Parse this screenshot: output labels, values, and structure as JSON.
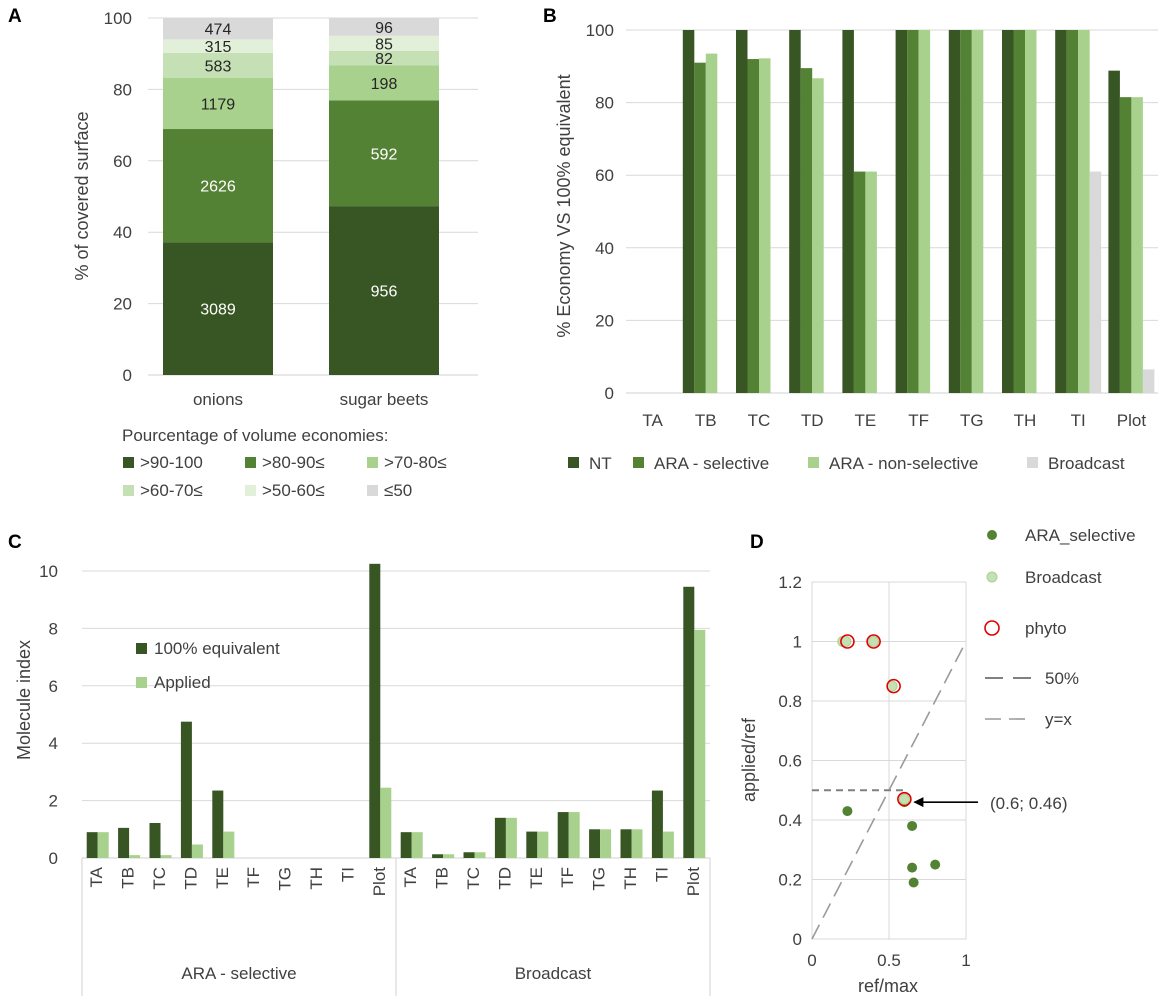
{
  "colors": {
    "dark": "#375623",
    "mid": "#548235",
    "light": "#a9d18e",
    "lighter": "#c5e0b4",
    "lightest": "#e2f0d9",
    "grey": "#d9d9d9",
    "grid": "#d9d9d9",
    "red": "#e00000",
    "dash": "#808080"
  },
  "chart_data": [
    {
      "panel": "A",
      "type": "bar",
      "stacked": true,
      "title": "",
      "ylabel": "% of covered surface",
      "ylim": [
        0,
        100
      ],
      "yticks": [
        0,
        20,
        40,
        60,
        80,
        100
      ],
      "categories": [
        "onions",
        "sugar beets"
      ],
      "legend_title": "Pourcentage of volume economies:",
      "series": [
        {
          "name": ">90-100",
          "values": [
            37.2,
            47.3
          ],
          "labels": [
            "3089",
            "956"
          ],
          "color": "dark"
        },
        {
          "name": ">80-90≤",
          "values": [
            31.7,
            29.6
          ],
          "labels": [
            "2626",
            "592"
          ],
          "color": "mid"
        },
        {
          "name": ">70-80≤",
          "values": [
            14.3,
            9.8
          ],
          "labels": [
            "1179",
            "198"
          ],
          "color": "light"
        },
        {
          "name": ">60-70≤",
          "values": [
            7.0,
            4.1
          ],
          "labels": [
            "583",
            "82"
          ],
          "color": "lighter"
        },
        {
          "name": ">50-60≤",
          "values": [
            3.8,
            4.2
          ],
          "labels": [
            "315",
            "85"
          ],
          "color": "lightest"
        },
        {
          "name": "≤50",
          "values": [
            6.0,
            5.0
          ],
          "labels": [
            "474",
            "96"
          ],
          "color": "grey"
        }
      ]
    },
    {
      "panel": "B",
      "type": "bar",
      "ylabel": "% Economy VS 100% equivalent",
      "ylim": [
        0,
        100
      ],
      "yticks": [
        0,
        20,
        40,
        60,
        80,
        100
      ],
      "categories": [
        "TA",
        "TB",
        "TC",
        "TD",
        "TE",
        "TF",
        "TG",
        "TH",
        "TI",
        "Plot"
      ],
      "series": [
        {
          "name": "NT",
          "values": [
            0,
            100,
            100,
            100,
            100,
            100,
            100,
            100,
            100,
            88.8
          ],
          "color": "dark"
        },
        {
          "name": "ARA - selective",
          "values": [
            0,
            91,
            92,
            89.5,
            61,
            100,
            100,
            100,
            100,
            81.5
          ],
          "color": "mid"
        },
        {
          "name": "ARA - non-selective",
          "values": [
            0,
            93.5,
            92.2,
            86.7,
            61,
            100,
            100,
            100,
            100,
            81.5
          ],
          "color": "light"
        },
        {
          "name": "Broadcast",
          "values": [
            0,
            0,
            0,
            0,
            0,
            0,
            0,
            0,
            61,
            6.5
          ],
          "color": "grey"
        }
      ]
    },
    {
      "panel": "C",
      "type": "bar",
      "ylabel": "Molecule index",
      "ylim": [
        0,
        10.5
      ],
      "yticks": [
        0,
        2,
        4,
        6,
        8,
        10
      ],
      "groups": [
        "ARA - selective",
        "Broadcast"
      ],
      "categories": [
        "TA",
        "TB",
        "TC",
        "TD",
        "TE",
        "TF",
        "TG",
        "TH",
        "TI",
        "Plot"
      ],
      "series": [
        {
          "name": "100% equivalent",
          "color": "dark",
          "values": [
            [
              0.9,
              1.05,
              1.22,
              4.75,
              2.35,
              0,
              0,
              0,
              0,
              10.25
            ],
            [
              0.9,
              0.13,
              0.2,
              1.4,
              0.92,
              1.6,
              1.0,
              1.0,
              2.35,
              9.45
            ]
          ]
        },
        {
          "name": "Applied",
          "color": "light",
          "values": [
            [
              0.9,
              0.1,
              0.1,
              0.47,
              0.92,
              0,
              0,
              0,
              0,
              2.45
            ],
            [
              0.9,
              0.13,
              0.2,
              1.4,
              0.92,
              1.6,
              1.0,
              1.0,
              0.92,
              7.95
            ]
          ]
        }
      ]
    },
    {
      "panel": "D",
      "type": "scatter",
      "xlabel": "ref/max",
      "ylabel": "applied/ref",
      "xlim": [
        0,
        1
      ],
      "ylim": [
        0,
        1.2
      ],
      "xticks": [
        0,
        0.5,
        1
      ],
      "xtick_labels": [
        "0",
        "0.5",
        "1"
      ],
      "yticks": [
        0,
        0.2,
        0.4,
        0.6,
        0.8,
        1,
        1.2
      ],
      "ytick_labels": [
        "0",
        "0.2",
        "0.4",
        "0.6",
        "0.8",
        "1",
        "1.2"
      ],
      "series": [
        {
          "name": "ARA_selective",
          "color": "mid",
          "points": [
            [
              0.23,
              0.43
            ],
            [
              0.6,
              0.46
            ],
            [
              0.65,
              0.38
            ],
            [
              0.65,
              0.24
            ],
            [
              0.8,
              0.25
            ],
            [
              0.66,
              0.19
            ]
          ]
        },
        {
          "name": "Broadcast",
          "color": "lighter",
          "points": [
            [
              0.2,
              1.0
            ],
            [
              0.22,
              1.0
            ],
            [
              0.4,
              1.0
            ],
            [
              0.52,
              0.85
            ],
            [
              0.6,
              0.47
            ]
          ]
        },
        {
          "name": "phyto",
          "color": "red",
          "points": [
            [
              0.23,
              1.0
            ],
            [
              0.4,
              1.0
            ],
            [
              0.53,
              0.85
            ],
            [
              0.6,
              0.47
            ]
          ]
        }
      ],
      "lines": [
        {
          "name": "50%",
          "style": "dashed",
          "x": [
            0,
            0.6
          ],
          "y": [
            0.5,
            0.5
          ]
        },
        {
          "name": "y=x",
          "style": "long-dash",
          "x": [
            0,
            1
          ],
          "y": [
            0,
            1
          ]
        }
      ],
      "annotation": {
        "text": "(0.6; 0.46)",
        "x": 0.6,
        "y": 0.46
      }
    }
  ]
}
